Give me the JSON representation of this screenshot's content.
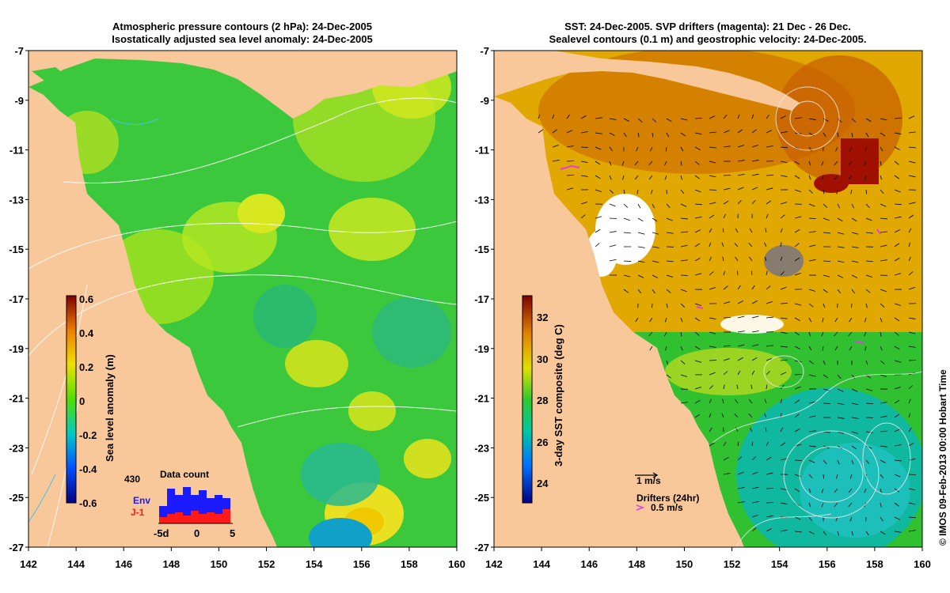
{
  "left_panel": {
    "title_line1": "Atmospheric pressure contours (2 hPa): 24-Dec-2005",
    "title_line2": "Isostatically adjusted sea level anomaly: 24-Dec-2005",
    "colorbar_label": "Sea level anomaly (m)",
    "colorbar_ticks": [
      "0.6",
      "0.4",
      "0.2",
      "0",
      "-0.2",
      "-0.4",
      "-0.6"
    ],
    "inset": {
      "title": "Data count",
      "count": "430",
      "series": [
        {
          "name": "Env",
          "color": "#1a1aff"
        },
        {
          "name": "J-1",
          "color": "#ff1a1a"
        }
      ],
      "xticks": [
        "-5d",
        "0",
        "5"
      ]
    }
  },
  "right_panel": {
    "title_line1": "SST: 24-Dec-2005. SVP drifters (magenta): 21 Dec - 26 Dec.",
    "title_line2": "Sealevel contours (0.1 m) and geostrophic velocity: 24-Dec-2005.",
    "colorbar_label": "3-day SST composite (deg C)",
    "colorbar_ticks": [
      "32",
      "30",
      "28",
      "26",
      "24"
    ],
    "velocity_scale": "1 m/s",
    "drifters_label": "Drifters (24hr)",
    "drifters_scale": "0.5 m/s"
  },
  "map_axes": {
    "lat_ticks": [
      "-7",
      "-9",
      "-11",
      "-13",
      "-15",
      "-17",
      "-19",
      "-21",
      "-23",
      "-25",
      "-27"
    ],
    "lon_ticks": [
      "142",
      "144",
      "146",
      "148",
      "150",
      "152",
      "154",
      "156",
      "158",
      "160"
    ]
  },
  "credit": "© IMOS 09-Feb-2013 00:00 Hobart Time",
  "colors": {
    "land": "#f9c89a",
    "sla_background": "#3cc83c",
    "sst_background": "#e0a800",
    "drifter": "#e040e0"
  }
}
